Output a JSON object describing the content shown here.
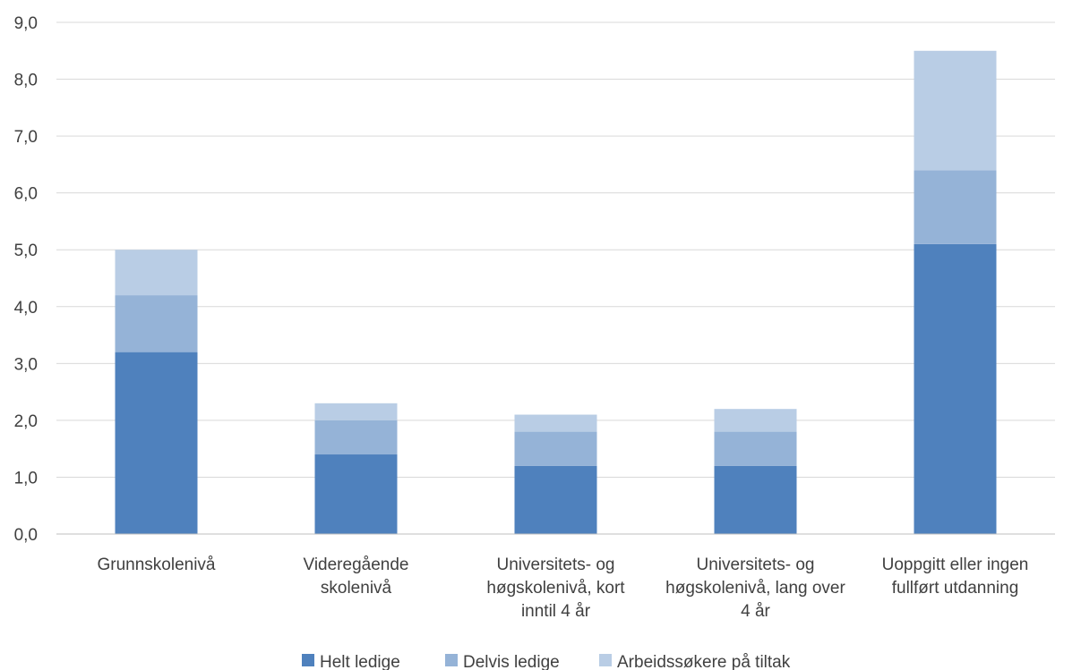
{
  "chart_data": {
    "type": "bar",
    "stacked": true,
    "categories": [
      [
        "Grunnskolenivå"
      ],
      [
        "Videregående",
        "skolenivå"
      ],
      [
        "Universitets- og",
        "høgskolenivå, kort",
        "inntil 4 år"
      ],
      [
        "Universitets- og",
        "høgskolenivå, lang over",
        "4 år"
      ],
      [
        "Uoppgitt eller ingen",
        "fullført utdanning"
      ]
    ],
    "series": [
      {
        "name": "Helt ledige",
        "color": "#4F81BD",
        "values": [
          3.2,
          1.4,
          1.2,
          1.2,
          5.1
        ]
      },
      {
        "name": "Delvis ledige",
        "color": "#95B3D7",
        "values": [
          1.0,
          0.6,
          0.6,
          0.6,
          1.3
        ]
      },
      {
        "name": "Arbeidssøkere på tiltak",
        "color": "#B9CDE5",
        "values": [
          0.8,
          0.3,
          0.3,
          0.4,
          2.1
        ]
      }
    ],
    "ylim": [
      0,
      9
    ],
    "yticks": [
      "0,0",
      "1,0",
      "2,0",
      "3,0",
      "4,0",
      "5,0",
      "6,0",
      "7,0",
      "8,0",
      "9,0"
    ],
    "grid": true,
    "legend_position": "bottom",
    "title": "",
    "xlabel": "",
    "ylabel": ""
  }
}
